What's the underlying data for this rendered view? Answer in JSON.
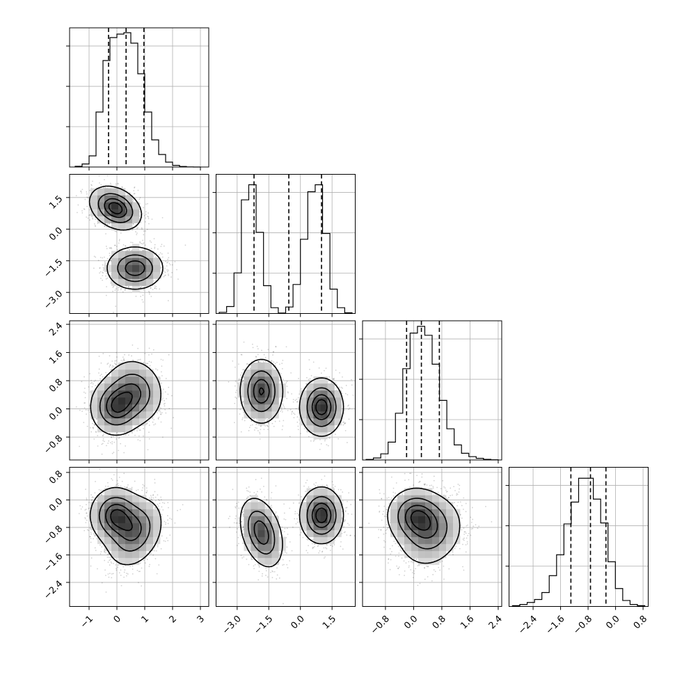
{
  "chart_data": {
    "type": "corner",
    "n_params": 4,
    "grid": true,
    "params": [
      {
        "range": [
          -1.7,
          3.3
        ],
        "ticks": [
          -1,
          0,
          1,
          2,
          3
        ],
        "tick_labels": [
          "−1",
          "0",
          "1",
          "2",
          "3"
        ],
        "quantiles": [
          -0.3,
          0.33,
          0.97
        ]
      },
      {
        "range": [
          -4.0,
          2.6
        ],
        "ticks": [
          -3.0,
          -1.5,
          0.0,
          1.5
        ],
        "tick_labels": [
          "−3.0",
          "−1.5",
          "0.0",
          "1.5"
        ],
        "quantiles": [
          -2.2,
          -0.55,
          1.0
        ]
      },
      {
        "range": [
          -1.45,
          2.5
        ],
        "ticks": [
          -0.8,
          0.0,
          0.8,
          1.6,
          2.4
        ],
        "tick_labels": [
          "−0.8",
          "0.0",
          "0.8",
          "1.6",
          "2.4"
        ],
        "quantiles": [
          -0.2,
          0.22,
          0.73
        ]
      },
      {
        "range": [
          -3.1,
          0.95
        ],
        "ticks": [
          -2.4,
          -1.6,
          -0.8,
          0.0,
          0.8
        ],
        "tick_labels": [
          "−2.4",
          "−1.6",
          "−0.8",
          "0.0",
          "0.8"
        ],
        "quantiles": [
          -1.3,
          -0.73,
          -0.28
        ]
      }
    ],
    "histograms": [
      {
        "param": 0,
        "bins": [
          -1.5,
          3.0
        ],
        "ylim": [
          0,
          1000
        ],
        "counts": [
          5,
          22,
          80,
          395,
          765,
          930,
          955,
          965,
          890,
          670,
          395,
          195,
          90,
          35,
          12,
          4,
          1,
          0
        ]
      },
      {
        "param": 1,
        "bins": [
          -3.85,
          2.45
        ],
        "ylim": [
          0,
          600
        ],
        "counts": [
          5,
          30,
          175,
          490,
          555,
          350,
          120,
          25,
          2,
          28,
          125,
          320,
          525,
          555,
          345,
          105,
          25,
          3
        ]
      },
      {
        "param": 2,
        "bins": [
          -1.35,
          2.4
        ],
        "ylim": [
          0,
          1250
        ],
        "counts": [
          5,
          18,
          55,
          160,
          420,
          820,
          1140,
          1200,
          1120,
          860,
          535,
          280,
          135,
          60,
          30,
          15,
          6,
          2
        ]
      },
      {
        "param": 3,
        "bins": [
          -3.0,
          0.85
        ],
        "ylim": [
          0,
          700
        ],
        "counts": [
          4,
          10,
          20,
          35,
          70,
          155,
          260,
          415,
          525,
          645,
          645,
          540,
          420,
          225,
          90,
          30,
          10,
          4
        ]
      }
    ],
    "mixture": [
      {
        "weight": 0.5,
        "mean": [
          -0.05,
          1.0,
          0.05,
          -0.45
        ],
        "sd": [
          0.45,
          0.5,
          0.4,
          0.4
        ],
        "corr": {
          "0-1": -0.3,
          "0-2": 0.0,
          "0-3": 0.0,
          "1-2": 0.0,
          "1-3": 0.0,
          "2-3": 0.0
        }
      },
      {
        "weight": 0.5,
        "mean": [
          0.65,
          -1.85,
          0.5,
          -0.95
        ],
        "sd": [
          0.5,
          0.5,
          0.45,
          0.5
        ],
        "corr": {
          "0-1": 0.0,
          "0-2": -0.1,
          "0-3": 0.3,
          "1-2": 0.0,
          "1-3": -0.35,
          "2-3": 0.2
        }
      }
    ],
    "contour_levels": [
      0.118,
      0.393,
      0.675,
      0.865
    ]
  }
}
